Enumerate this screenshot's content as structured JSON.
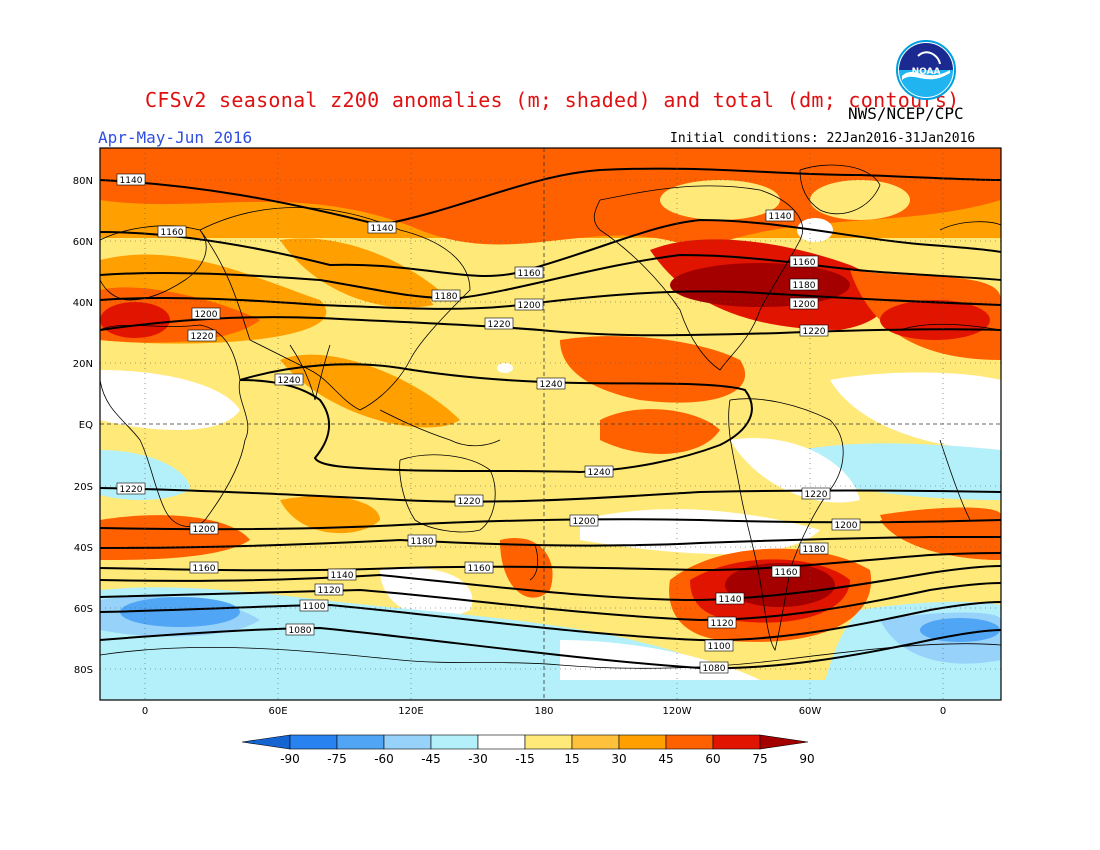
{
  "header": {
    "title": "CFSv2 seasonal z200 anomalies (m; shaded) and total (dm; contours)",
    "season": "Apr-May-Jun 2016",
    "agency": "NWS/NCEP/CPC",
    "initial_conditions": "Initial conditions: 22Jan2016-31Jan2016",
    "logo_text": "NOAA"
  },
  "map": {
    "lat_labels": [
      "80N",
      "60N",
      "40N",
      "20N",
      "EQ",
      "20S",
      "40S",
      "60S",
      "80S"
    ],
    "lon_labels": [
      "0",
      "60E",
      "120E",
      "180",
      "120W",
      "60W",
      "0"
    ],
    "contours": [
      {
        "label": "1140",
        "value": 1140
      },
      {
        "label": "1160",
        "value": 1160
      },
      {
        "label": "1180",
        "value": 1180
      },
      {
        "label": "1200",
        "value": 1200
      },
      {
        "label": "1220",
        "value": 1220
      },
      {
        "label": "1240",
        "value": 1240
      },
      {
        "label": "1120",
        "value": 1120
      },
      {
        "label": "1100",
        "value": 1100
      },
      {
        "label": "1080",
        "value": 1080
      }
    ]
  },
  "colorbar": {
    "labels": [
      "-90",
      "-75",
      "-60",
      "-45",
      "-30",
      "-15",
      "15",
      "30",
      "45",
      "60",
      "75",
      "90"
    ],
    "colors": [
      "#1464d2",
      "#2882f0",
      "#50a5f5",
      "#96d2fa",
      "#b4f0fa",
      "#ffffff",
      "#ffe978",
      "#ffc03c",
      "#ffa000",
      "#ff6000",
      "#e11400",
      "#a50000"
    ]
  },
  "colors": {
    "title": "#e01010",
    "season": "#2f4fe0",
    "warm_deep": "#c81e00",
    "warm_mid": "#ff6000",
    "cool": "#96d2fa"
  }
}
